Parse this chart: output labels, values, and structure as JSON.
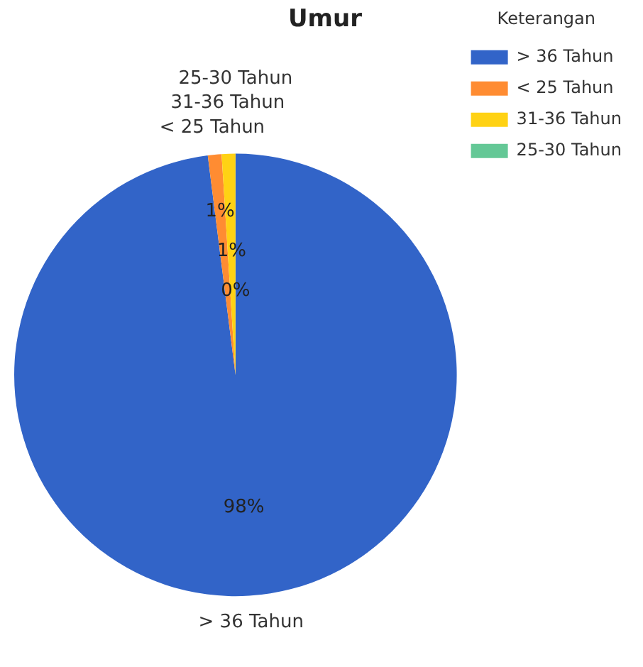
{
  "chart_data": {
    "type": "pie",
    "title": "Umur",
    "legend_title": "Keterangan",
    "legend": "top right",
    "categories": [
      "> 36 Tahun",
      "< 25 Tahun",
      "31-36 Tahun",
      "25-30 Tahun"
    ],
    "values": [
      98,
      1,
      1,
      0
    ],
    "colors": [
      "#3264c8",
      "#ff8c32",
      "#ffd214",
      "#64c896"
    ],
    "value_labels": [
      "98%",
      "1%",
      "1%",
      "0%"
    ]
  }
}
